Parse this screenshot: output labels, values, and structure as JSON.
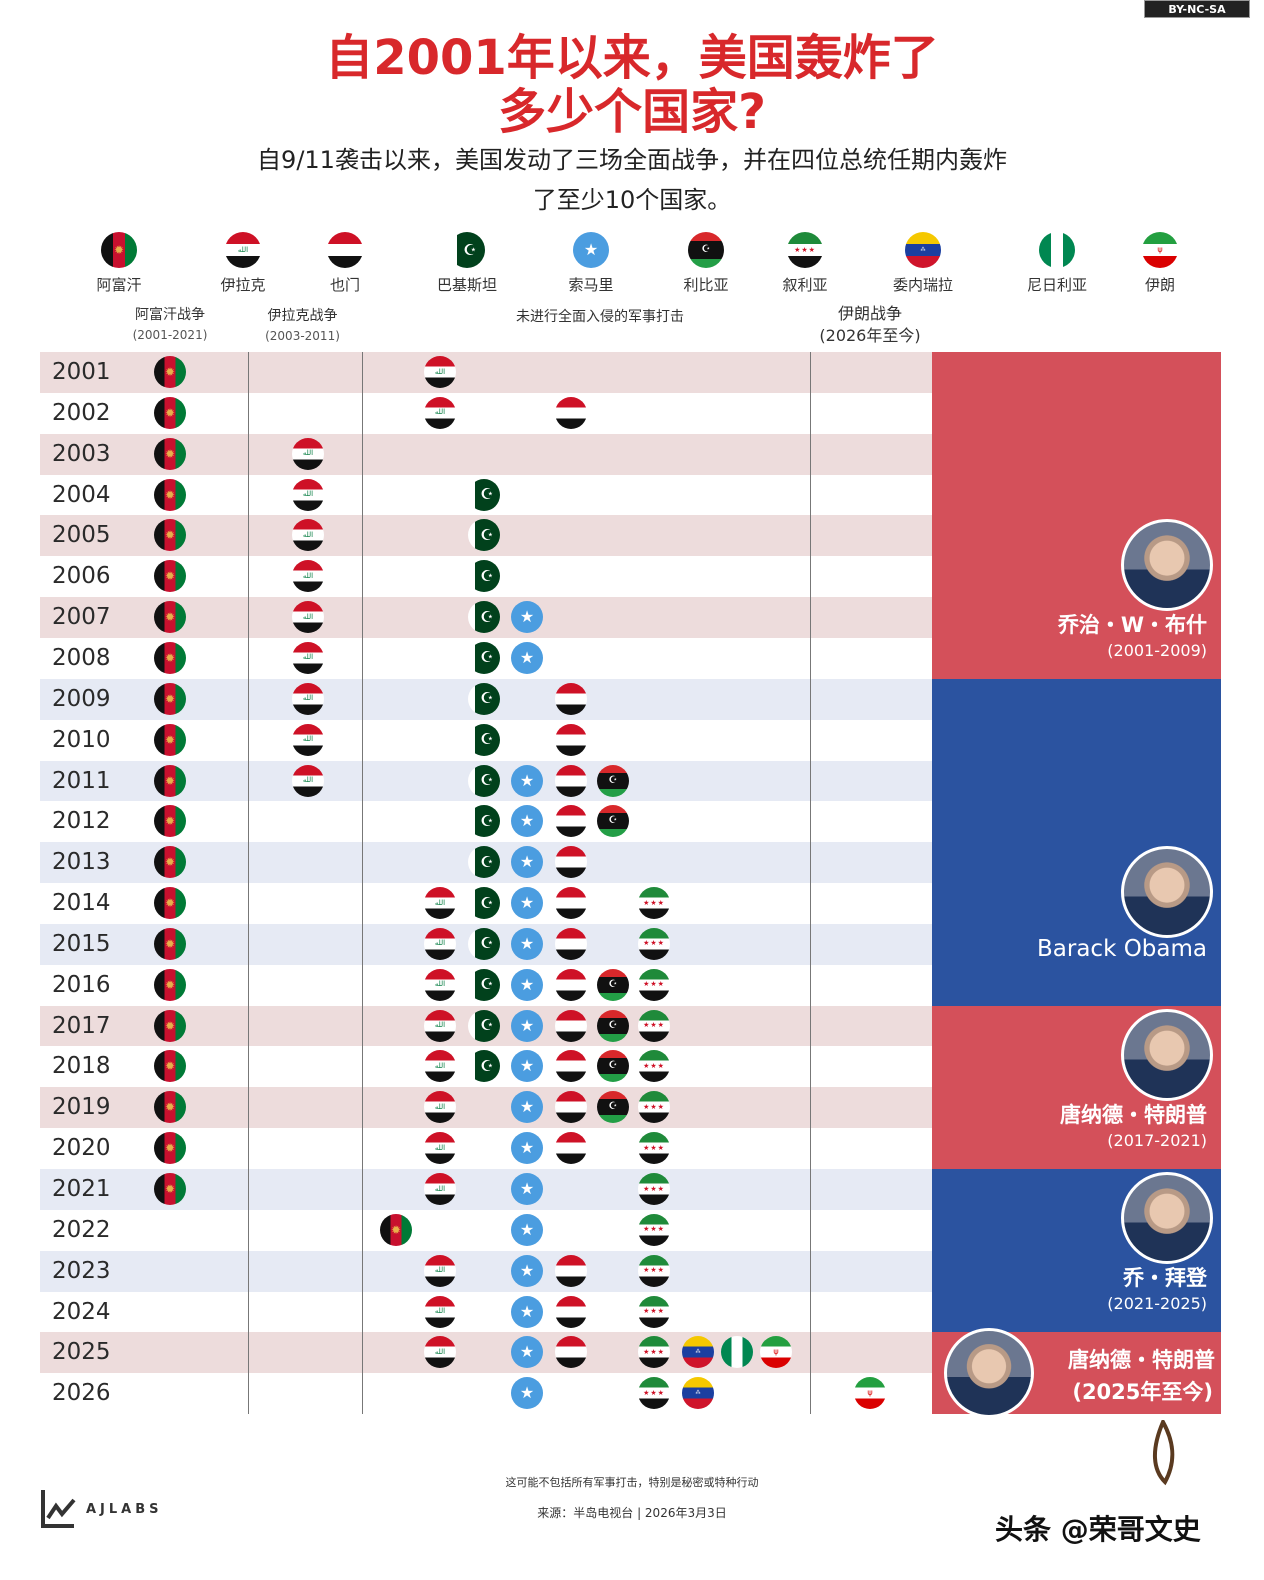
{
  "license_badge": "BY-NC-SA",
  "title_line1": "自2001年以来，美国轰炸了",
  "title_line2": "多少个国家?",
  "subtitle_line1": "自9/11袭击以来，美国发动了三场全面战争，并在四位总统任期内轰炸",
  "subtitle_line2": "了至少10个国家。",
  "legend": [
    {
      "code": "AFG",
      "label": "阿富汗"
    },
    {
      "code": "IRQ",
      "label": "伊拉克"
    },
    {
      "code": "YEM",
      "label": "也门"
    },
    {
      "code": "PAK",
      "label": "巴基斯坦"
    },
    {
      "code": "SOM",
      "label": "索马里"
    },
    {
      "code": "LBY",
      "label": "利比亚"
    },
    {
      "code": "SYR",
      "label": "叙利亚"
    },
    {
      "code": "VEN",
      "label": "委内瑞拉"
    },
    {
      "code": "NGA",
      "label": "尼日利亚"
    },
    {
      "code": "IRN",
      "label": "伊朗"
    }
  ],
  "column_headers": {
    "afghan_war": {
      "label": "阿富汗战争",
      "years": "(2001-2021)"
    },
    "iraq_war": {
      "label": "伊拉克战争",
      "years": "(2003-2011)"
    },
    "strikes": {
      "label": "未进行全面入侵的军事打击"
    },
    "iran_war": {
      "label": "伊朗战争",
      "years": "(2026年至今)"
    }
  },
  "chart_data": {
    "type": "table",
    "years": [
      2001,
      2002,
      2003,
      2004,
      2005,
      2006,
      2007,
      2008,
      2009,
      2010,
      2011,
      2012,
      2013,
      2014,
      2015,
      2016,
      2017,
      2018,
      2019,
      2020,
      2021,
      2022,
      2023,
      2024,
      2025,
      2026
    ],
    "afghan_war": [
      2001,
      2021
    ],
    "iraq_war": [
      2003,
      2011
    ],
    "iran_war": [
      2026,
      2026
    ],
    "strikes": {
      "2001": [
        "IRQ"
      ],
      "2002": [
        "IRQ",
        "YEM"
      ],
      "2003": [],
      "2004": [
        "PAK"
      ],
      "2005": [
        "PAK"
      ],
      "2006": [
        "PAK"
      ],
      "2007": [
        "PAK",
        "SOM"
      ],
      "2008": [
        "PAK",
        "SOM"
      ],
      "2009": [
        "PAK",
        "YEM"
      ],
      "2010": [
        "PAK",
        "YEM"
      ],
      "2011": [
        "PAK",
        "SOM",
        "YEM",
        "LBY"
      ],
      "2012": [
        "PAK",
        "SOM",
        "YEM",
        "LBY"
      ],
      "2013": [
        "PAK",
        "SOM",
        "YEM"
      ],
      "2014": [
        "IRQ",
        "PAK",
        "SOM",
        "YEM",
        "SYR"
      ],
      "2015": [
        "IRQ",
        "PAK",
        "SOM",
        "YEM",
        "SYR"
      ],
      "2016": [
        "IRQ",
        "PAK",
        "SOM",
        "YEM",
        "LBY",
        "SYR"
      ],
      "2017": [
        "IRQ",
        "PAK",
        "SOM",
        "YEM",
        "LBY",
        "SYR"
      ],
      "2018": [
        "IRQ",
        "PAK",
        "SOM",
        "YEM",
        "LBY",
        "SYR"
      ],
      "2019": [
        "IRQ",
        "SOM",
        "YEM",
        "LBY",
        "SYR"
      ],
      "2020": [
        "IRQ",
        "SOM",
        "YEM",
        "SYR"
      ],
      "2021": [
        "IRQ",
        "SOM",
        "SYR"
      ],
      "2022": [
        "AFG",
        "SOM",
        "SYR"
      ],
      "2023": [
        "IRQ",
        "SOM",
        "YEM",
        "SYR"
      ],
      "2024": [
        "IRQ",
        "SOM",
        "YEM",
        "SYR"
      ],
      "2025": [
        "IRQ",
        "SOM",
        "YEM",
        "SYR",
        "VEN",
        "NGA",
        "IRN"
      ],
      "2026": [
        "SOM",
        "SYR",
        "VEN"
      ]
    },
    "presidents": [
      {
        "name": "乔治・W・布什",
        "years": "(2001-2009)",
        "from": 2001,
        "to": 2008,
        "party_color": "#d4505a"
      },
      {
        "name": "Barack Obama",
        "years": "",
        "from": 2009,
        "to": 2016,
        "party_color": "#2b53a0"
      },
      {
        "name": "唐纳德・特朗普",
        "years": "(2017-2021)",
        "from": 2017,
        "to": 2020,
        "party_color": "#d4505a"
      },
      {
        "name": "乔・拜登",
        "years": "(2021-2025)",
        "from": 2021,
        "to": 2024,
        "party_color": "#2b53a0"
      },
      {
        "name": "唐纳德・特朗普",
        "years": "(2025年至今)",
        "from": 2025,
        "to": 2026,
        "party_color": "#d4505a"
      }
    ]
  },
  "footer": {
    "note": "这可能不包括所有军事打击，特别是秘密或特种行动",
    "source": "来源：半岛电视台 | 2026年3月3日",
    "brand": "AJLABS",
    "watermark": "头条 @荣哥文史"
  }
}
